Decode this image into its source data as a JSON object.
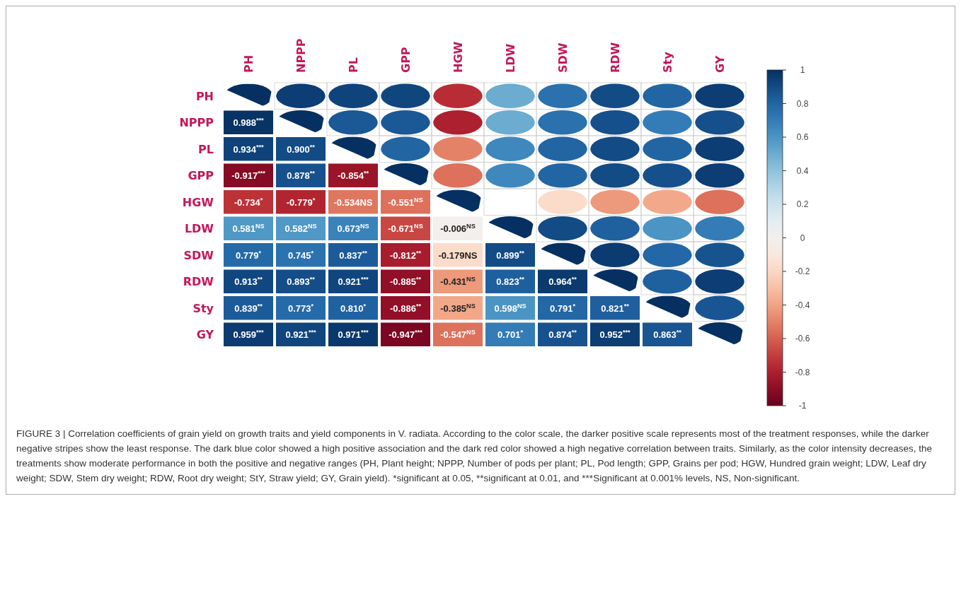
{
  "chart_data": {
    "type": "heatmap",
    "categories": [
      "PH",
      "NPPP",
      "PL",
      "GPP",
      "HGW",
      "LDW",
      "SDW",
      "RDW",
      "Sty",
      "GY"
    ],
    "y_categories": [
      "PH",
      "NPPP",
      "PL",
      "GPP",
      "HGW",
      "LDW",
      "SDW",
      "RDW",
      "Sty",
      "GY"
    ],
    "cells": [
      [
        1,
        0.95,
        0.93,
        0.92,
        -0.75,
        0.5,
        0.75,
        0.9,
        0.8,
        0.95
      ],
      [
        0.988,
        1,
        0.85,
        0.85,
        -0.8,
        0.5,
        0.75,
        0.88,
        0.7,
        0.88
      ],
      [
        0.934,
        0.9,
        1,
        0.8,
        -0.5,
        0.65,
        0.8,
        0.9,
        0.8,
        0.95
      ],
      [
        -0.917,
        0.878,
        -0.854,
        1,
        -0.55,
        0.65,
        0.8,
        0.9,
        0.88,
        0.95
      ],
      [
        -0.734,
        -0.779,
        -0.534,
        -0.551,
        1,
        null,
        -0.18,
        -0.43,
        -0.38,
        -0.55
      ],
      [
        0.581,
        0.582,
        0.673,
        -0.671,
        -0.006,
        1,
        0.9,
        0.82,
        0.6,
        0.7
      ],
      [
        0.779,
        0.745,
        0.837,
        -0.812,
        -0.179,
        0.899,
        1,
        0.96,
        0.79,
        0.87
      ],
      [
        0.913,
        0.893,
        0.921,
        -0.885,
        -0.431,
        0.823,
        0.964,
        1,
        0.82,
        0.95
      ],
      [
        0.839,
        0.773,
        0.81,
        -0.886,
        -0.385,
        0.598,
        0.791,
        0.821,
        1,
        0.86
      ],
      [
        0.959,
        0.921,
        0.971,
        -0.947,
        -0.547,
        0.701,
        0.874,
        0.952,
        0.863,
        1
      ]
    ],
    "cell_labels": [
      [
        null,
        null,
        null,
        null,
        null,
        null,
        null,
        null,
        null,
        null
      ],
      [
        "0.988$^{***}$",
        null,
        null,
        null,
        null,
        null,
        null,
        null,
        null,
        null
      ],
      [
        "0.934$^{***}$",
        "0.900$^{**}$",
        null,
        null,
        null,
        null,
        null,
        null,
        null,
        null
      ],
      [
        "-0.917$^{***}$",
        "0.878$^{**}$",
        "-0.854$^{**}$",
        null,
        null,
        null,
        null,
        null,
        null,
        null
      ],
      [
        "-0.734$^{*}$",
        "-0.779$^{*}$",
        "-0.534NS",
        "-0.551$^{NS}$",
        null,
        null,
        null,
        null,
        null,
        null
      ],
      [
        "0.581$^{NS}$",
        "0.582$^{NS}$",
        "0.673$^{NS}$",
        "-0.671$^{NS}$",
        "-0.006$^{NS}$",
        null,
        null,
        null,
        null,
        null
      ],
      [
        "0.779$^{*}$",
        "0.745$^{*}$",
        "0.837$^{**}$",
        "-0.812$^{**}$",
        "-0.179NS",
        "0.899$^{**}$",
        null,
        null,
        null,
        null
      ],
      [
        "0.913$^{**}$",
        "0.893$^{**}$",
        "0.921$^{***}$",
        "-0.885$^{**}$",
        "-0.431$^{NS}$",
        "0.823$^{**}$",
        "0.964$^{**}$",
        null,
        null,
        null
      ],
      [
        "0.839$^{**}$",
        "0.773$^{*}$",
        "0.810$^{*}$",
        "-0.886$^{**}$",
        "-0.385$^{NS}$",
        "0.598$^{NS}$",
        "0.791$^{*}$",
        "0.821$^{**}$",
        null,
        null
      ],
      [
        "0.959$^{***}$",
        "0.921$^{***}$",
        "0.971$^{***}$",
        "-0.947$^{***}$",
        "-0.547$^{NS}$",
        "0.701$^{*}$",
        "0.874$^{**}$",
        "0.952$^{***}$",
        "0.863$^{**}$",
        null
      ]
    ],
    "clim": [
      -1,
      1
    ],
    "cticks": [
      -1,
      -0.8,
      -0.6,
      -0.4,
      -0.2,
      0,
      0.2,
      0.4,
      0.6,
      0.8,
      1
    ],
    "annotations": [
      "FIGURE 3 | Correlation coefficients of grain yield on growth traits and yield components in V. radiata. According to the color scale, the darker positive scale represents most of the treatment responses, while the darker negative stripes show the least response. The dark blue color showed a high positive association and the dark red color showed a high negative correlation between traits. Similarly, as the color intensity decreases, the treatments show moderate performance in both the positive and negative ranges (PH, Plant height; NPPP, Number of pods per plant; PL, Pod length; GPP, Grains per pod; HGW, Hundred grain weight; LDW, Leaf dry weight; SDW, Stem dry weight; RDW, Root dry weight; StY, Straw yield; GY, Grain yield). *significant at 0.05, **significant at 0.01, and ***Significant at 0.001% levels, NS, Non-significant."
    ]
  }
}
